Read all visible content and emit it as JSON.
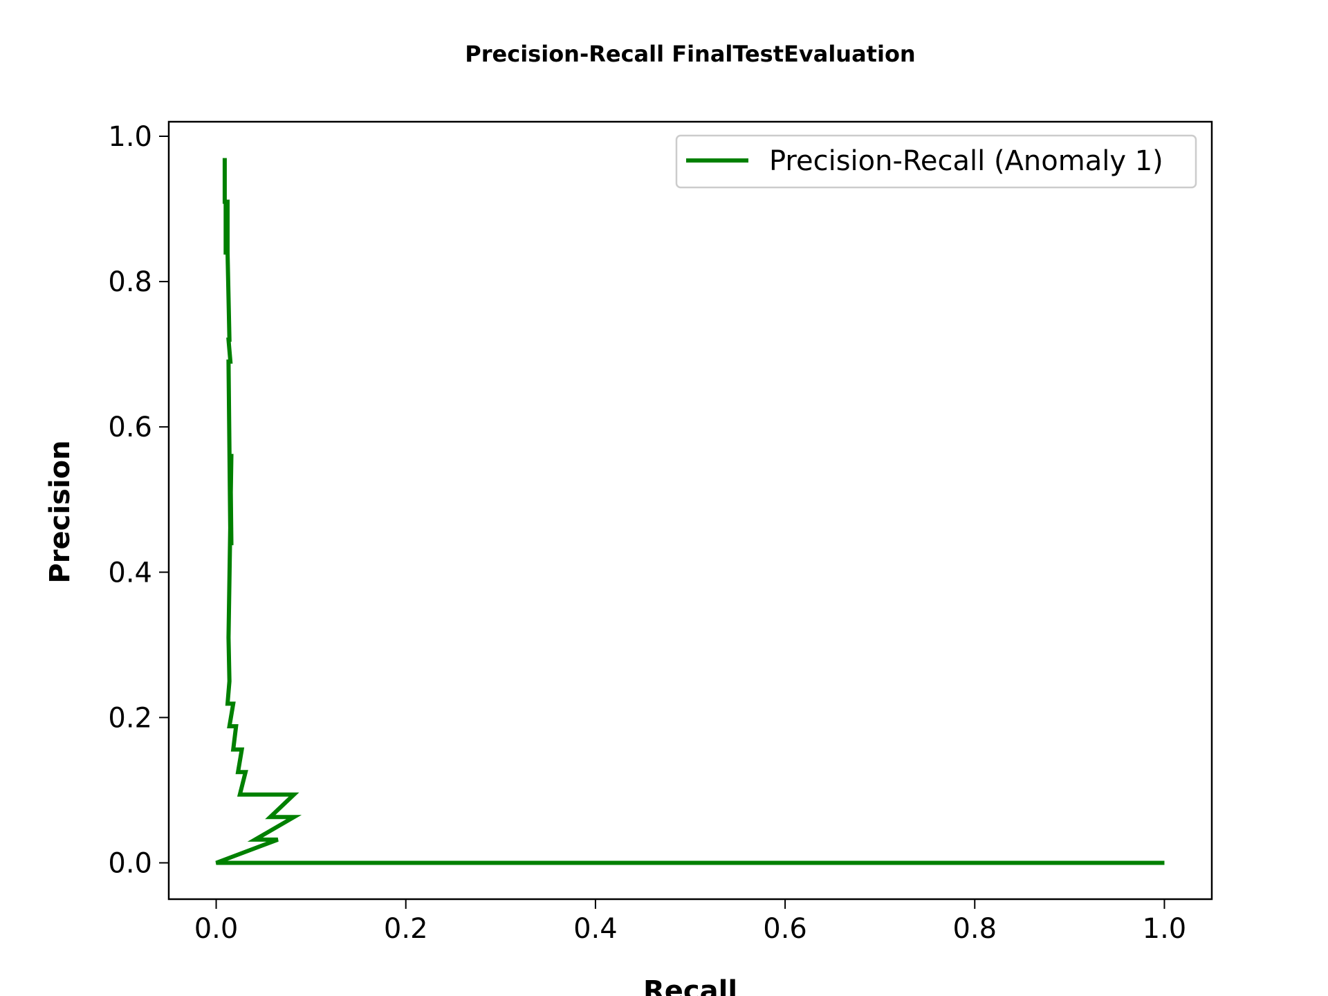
{
  "chart_data": {
    "type": "line",
    "title": "Precision-Recall FinalTestEvaluation",
    "xlabel": "Recall",
    "ylabel": "Precision",
    "xlim": [
      -0.05,
      1.05
    ],
    "ylim": [
      -0.05,
      1.02
    ],
    "xticks": [
      0.0,
      0.2,
      0.4,
      0.6,
      0.8,
      1.0
    ],
    "yticks": [
      0.0,
      0.2,
      0.4,
      0.6,
      0.8,
      1.0
    ],
    "xtick_labels": [
      "0.0",
      "0.2",
      "0.4",
      "0.6",
      "0.8",
      "1.0"
    ],
    "ytick_labels": [
      "0.0",
      "0.2",
      "0.4",
      "0.6",
      "0.8",
      "1.0"
    ],
    "grid": false,
    "legend_position": "upper right",
    "series": [
      {
        "name": "Precision-Recall (Anomaly 1)",
        "color": "#008000",
        "x": [
          1.0,
          0.0,
          0.065,
          0.041,
          0.082,
          0.057,
          0.082,
          0.025,
          0.031,
          0.023,
          0.027,
          0.018,
          0.021,
          0.014,
          0.018,
          0.012,
          0.014,
          0.013,
          0.016,
          0.015,
          0.016,
          0.015,
          0.013,
          0.015,
          0.013,
          0.014,
          0.012,
          0.013,
          0.012,
          0.012,
          0.011,
          0.011,
          0.01,
          0.01,
          0.009,
          0.009
        ],
        "y": [
          0.0,
          0.0,
          0.032,
          0.032,
          0.063,
          0.063,
          0.094,
          0.094,
          0.125,
          0.125,
          0.156,
          0.156,
          0.188,
          0.188,
          0.219,
          0.219,
          0.25,
          0.31,
          0.56,
          0.56,
          0.44,
          0.44,
          0.69,
          0.69,
          0.72,
          0.72,
          0.84,
          0.84,
          0.84,
          0.91,
          0.91,
          0.84,
          0.84,
          0.91,
          0.91,
          0.97
        ]
      }
    ]
  }
}
